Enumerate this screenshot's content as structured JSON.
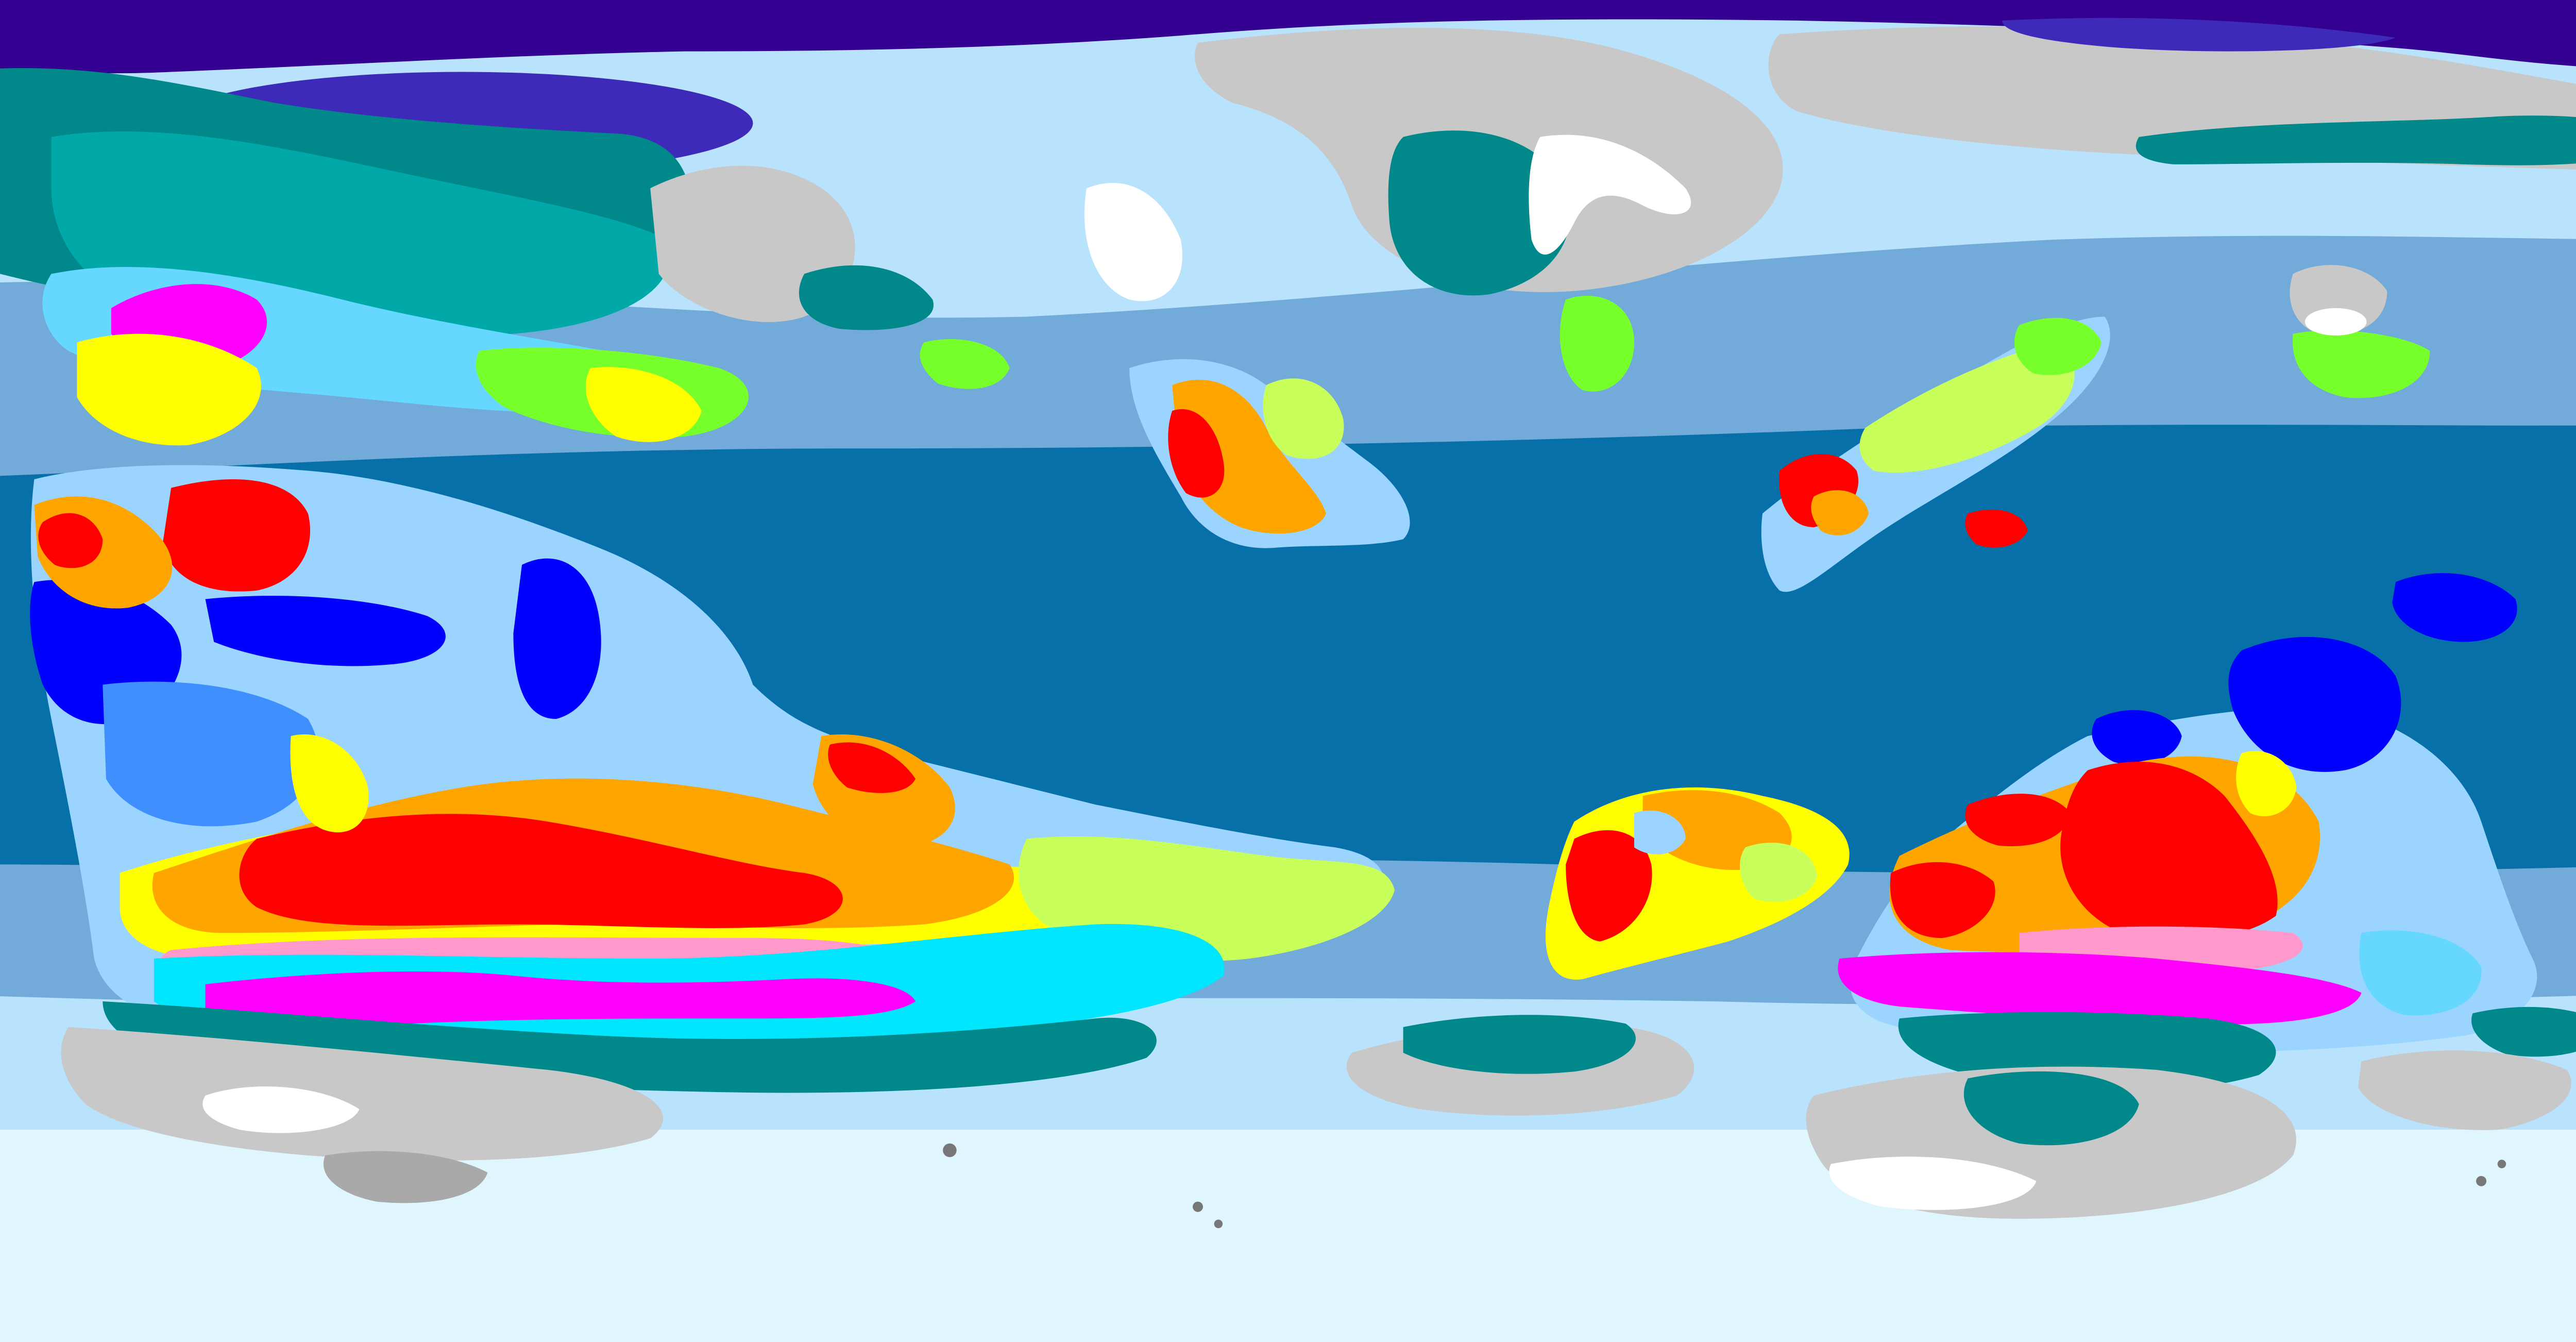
{
  "map": {
    "projection": "equirectangular",
    "style": "procedural climate classification (Köppen-like)",
    "text_labels": [],
    "legend": null,
    "colors": {
      "polar_cap": "#330091",
      "polar_cap_light": "#3d2ab8",
      "ice_sea_light": "#e0f6fe",
      "sea_cold": "#b9e3fc",
      "sea_temperate": "#72aad9",
      "sea_tropical": "#0870a8",
      "ice_cap": "#ffffff",
      "tundra": "#c8c8c8",
      "tundra_dark": "#a9a9a9",
      "subarctic_dark": "#00888a",
      "subarctic_teal": "#00a8a8",
      "continental_cyan": "#00e6ff",
      "continental_light_cyan": "#66d8ff",
      "magenta": "#ff00ff",
      "pink": "#ff99cc",
      "mediterranean_yellow": "#ffff00",
      "semiarid_lime": "#c8ff5a",
      "humid_green": "#77ff2b",
      "desert_red": "#ff0000",
      "steppe_orange": "#ffa500",
      "savanna_lightblue": "#9ad4ff",
      "monsoon_blue": "#3f8fff",
      "rainforest_blue": "#0000ff",
      "volcanic_gray": "#777777"
    },
    "climate_regions": [
      {
        "name": "polar-cap-north",
        "color_key": "polar_cap"
      },
      {
        "name": "western-continent-tropics",
        "color_key": "desert_red"
      },
      {
        "name": "southern-ocean-band",
        "color_key": "sea_cold"
      },
      {
        "name": "antarctic-ice",
        "color_key": "ice_sea_light"
      },
      {
        "name": "eastern-continent-desert",
        "color_key": "desert_red"
      },
      {
        "name": "northeast-rainforest",
        "color_key": "rainforest_blue"
      }
    ]
  }
}
